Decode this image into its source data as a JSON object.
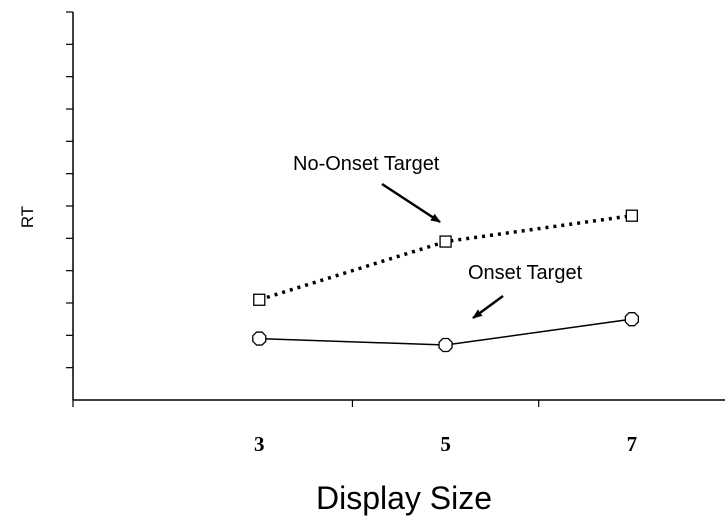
{
  "chart_data": {
    "type": "line",
    "x": [
      3,
      5,
      7
    ],
    "xlabel": "Display Size",
    "ylabel": "RT",
    "xlim": [
      1,
      8
    ],
    "ylim": [
      0,
      12
    ],
    "y_tick_count": 12,
    "y_tick_labels": false,
    "grid": false,
    "legend": "none",
    "series": [
      {
        "name": "No-Onset Target",
        "values": [
          3.1,
          4.9,
          5.7
        ],
        "line": "dotted",
        "marker": "square"
      },
      {
        "name": "Onset Target",
        "values": [
          1.9,
          1.7,
          2.5
        ],
        "line": "solid",
        "marker": "octagon"
      }
    ],
    "annotations": [
      {
        "text": "No-Onset Target",
        "points_to_x": 5.3,
        "points_to_y": 5.4
      },
      {
        "text": "Onset Target",
        "points_to_x": 5.3,
        "points_to_y": 2.4
      }
    ]
  }
}
